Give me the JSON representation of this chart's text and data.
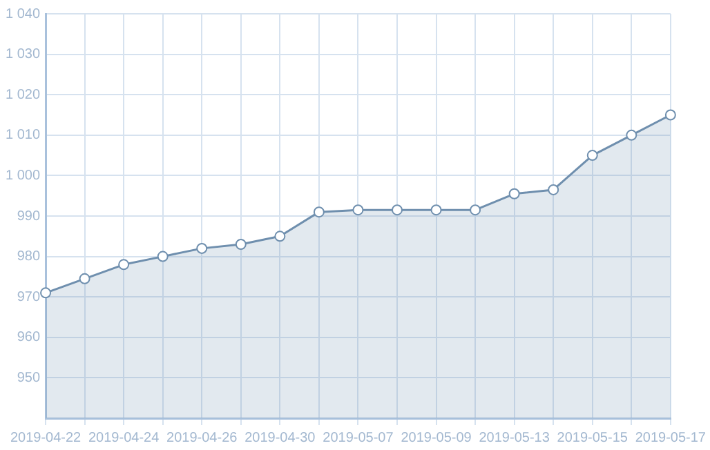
{
  "chart_data": {
    "type": "area",
    "categories": [
      "2019-04-22",
      null,
      "2019-04-24",
      null,
      "2019-04-26",
      null,
      "2019-04-30",
      null,
      "2019-05-07",
      null,
      "2019-05-09",
      null,
      "2019-05-13",
      null,
      "2019-05-15",
      null,
      "2019-05-17"
    ],
    "series": [
      {
        "color": "#6f8fae",
        "values": [
          971,
          974.5,
          978,
          980,
          982,
          983,
          985,
          991,
          991.5,
          991.5,
          991.5,
          991.5,
          995.5,
          996.5,
          1005,
          1010,
          1015
        ]
      }
    ],
    "ylim": [
      940,
      1040
    ],
    "yticks": [
      950,
      960,
      970,
      980,
      990,
      {
        "value": 1000,
        "label": "1 000"
      },
      {
        "value": 1010,
        "label": "1 010"
      },
      {
        "value": 1020,
        "label": "1 020"
      },
      {
        "value": 1030,
        "label": "1 030"
      },
      {
        "value": 1040,
        "label": "1 040"
      }
    ],
    "grid": true,
    "legend": false,
    "marker": "circle",
    "line_style": "solid"
  }
}
